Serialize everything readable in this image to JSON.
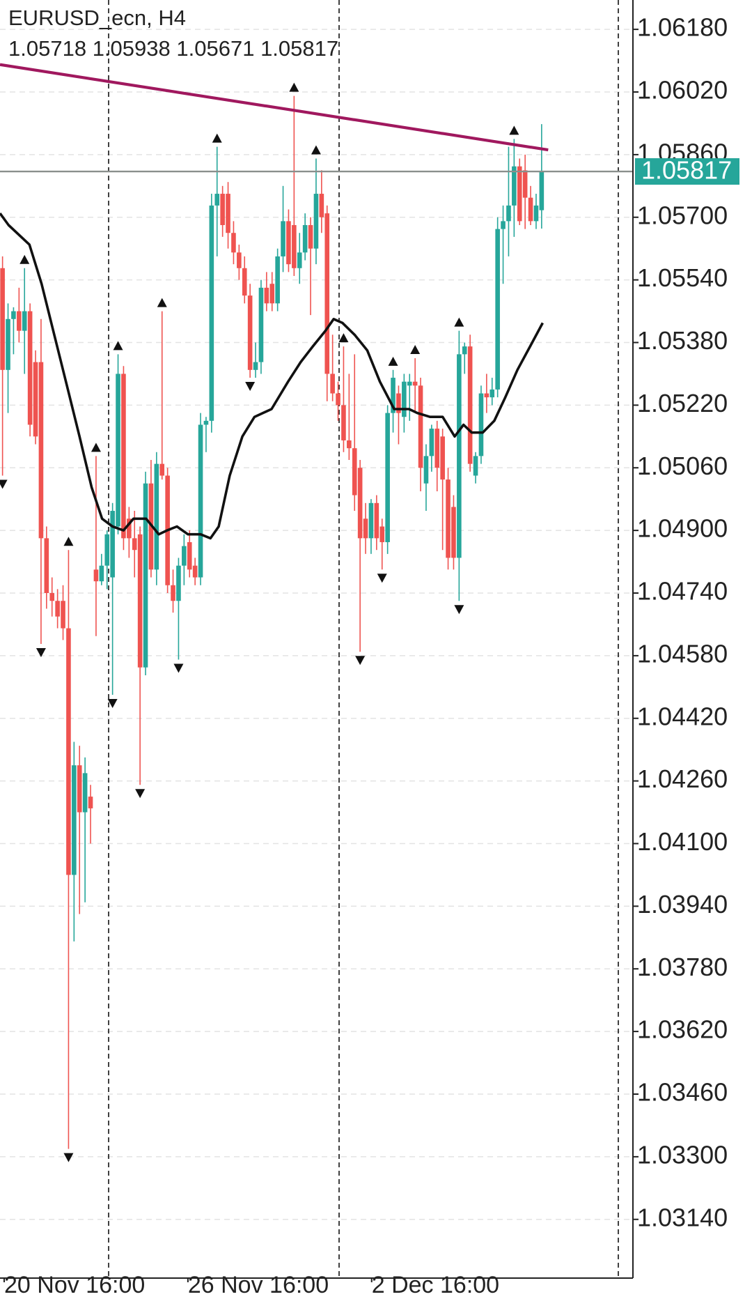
{
  "chart_data": {
    "type": "candlestick",
    "title": "EURUSD_ecn, H4",
    "header_values": [
      1.05718,
      1.05938,
      1.05671,
      1.05817
    ],
    "up_color": "#26a69a",
    "down_color": "#ef5350",
    "ylim": [
      1.0299,
      1.06255
    ],
    "xlim": [
      -0.46,
      114.6
    ],
    "grid": true,
    "yticks": [
      {
        "value": 1.0618,
        "label": "1.06180"
      },
      {
        "value": 1.0602,
        "label": "1.06020"
      },
      {
        "value": 1.0586,
        "label": "1.05860"
      },
      {
        "value": 1.057,
        "label": "1.05700"
      },
      {
        "value": 1.0554,
        "label": "1.05540"
      },
      {
        "value": 1.0538,
        "label": "1.05380"
      },
      {
        "value": 1.0522,
        "label": "1.05220"
      },
      {
        "value": 1.0506,
        "label": "1.05060"
      },
      {
        "value": 1.049,
        "label": "1.04900"
      },
      {
        "value": 1.0474,
        "label": "1.04740"
      },
      {
        "value": 1.0458,
        "label": "1.04580"
      },
      {
        "value": 1.0442,
        "label": "1.04420"
      },
      {
        "value": 1.0426,
        "label": "1.04260"
      },
      {
        "value": 1.041,
        "label": "1.04100"
      },
      {
        "value": 1.0394,
        "label": "1.03940"
      },
      {
        "value": 1.0378,
        "label": "1.03780"
      },
      {
        "value": 1.0362,
        "label": "1.03620"
      },
      {
        "value": 1.0346,
        "label": "1.03460"
      },
      {
        "value": 1.033,
        "label": "1.03300"
      },
      {
        "value": 1.0314,
        "label": "1.03140"
      }
    ],
    "xticks": [
      {
        "value": 0.3,
        "label": "20 Nov 16:00"
      },
      {
        "value": 33.7,
        "label": "26 Nov 16:00"
      },
      {
        "value": 67.1,
        "label": "2 Dec 16:00"
      }
    ],
    "candles": [
      [
        1.0557,
        1.056,
        1.0504,
        1.0531
      ],
      [
        1.0531,
        1.0548,
        1.052,
        1.0544
      ],
      [
        1.0544,
        1.0547,
        1.0535,
        1.0546
      ],
      [
        1.0546,
        1.0552,
        1.0538,
        1.0541
      ],
      [
        1.0541,
        1.0557,
        1.053,
        1.0546
      ],
      [
        1.0546,
        1.0548,
        1.0514,
        1.0517
      ],
      [
        1.0533,
        1.0536,
        1.0512,
        1.0514
      ],
      [
        1.0533,
        1.0544,
        1.0461,
        1.0488
      ],
      [
        1.0488,
        1.0491,
        1.047,
        1.0474
      ],
      [
        1.0474,
        1.0478,
        1.0468,
        1.0472
      ],
      [
        1.0472,
        1.0475,
        1.0465,
        1.0468
      ],
      [
        1.0472,
        1.0476,
        1.0462,
        1.0465
      ],
      [
        1.0465,
        1.0485,
        1.0332,
        1.0402
      ],
      [
        1.0402,
        1.0436,
        1.0385,
        1.043
      ],
      [
        1.043,
        1.0435,
        1.0392,
        1.0418
      ],
      [
        1.0418,
        1.0432,
        1.0395,
        1.0428
      ],
      [
        1.0422,
        1.0425,
        1.041,
        1.0419
      ],
      [
        1.048,
        1.0509,
        1.0463,
        1.0477
      ],
      [
        1.0477,
        1.0484,
        1.0476,
        1.0481
      ],
      [
        1.0481,
        1.049,
        1.0475,
        1.0489
      ],
      [
        1.0478,
        1.0497,
        1.0448,
        1.0495
      ],
      [
        1.0491,
        1.0535,
        1.0489,
        1.053
      ],
      [
        1.053,
        1.0532,
        1.0485,
        1.0488
      ],
      [
        1.0493,
        1.0496,
        1.0483,
        1.0488
      ],
      [
        1.0488,
        1.0495,
        1.0478,
        1.0485
      ],
      [
        1.0489,
        1.0491,
        1.0425,
        1.0455
      ],
      [
        1.0455,
        1.0505,
        1.0453,
        1.0502
      ],
      [
        1.0502,
        1.0508,
        1.0478,
        1.048
      ],
      [
        1.048,
        1.051,
        1.0476,
        1.0507
      ],
      [
        1.0507,
        1.0546,
        1.0503,
        1.0504
      ],
      [
        1.0504,
        1.0506,
        1.0474,
        1.0476
      ],
      [
        1.0476,
        1.048,
        1.0469,
        1.0472
      ],
      [
        1.0472,
        1.0483,
        1.0457,
        1.0481
      ],
      [
        1.0481,
        1.0489,
        1.0476,
        1.0486
      ],
      [
        1.0487,
        1.049,
        1.0478,
        1.048
      ],
      [
        1.0481,
        1.0483,
        1.0476,
        1.0478
      ],
      [
        1.0478,
        1.052,
        1.0476,
        1.0517
      ],
      [
        1.0517,
        1.0519,
        1.051,
        1.0518
      ],
      [
        1.0518,
        1.0576,
        1.0515,
        1.0573
      ],
      [
        1.0573,
        1.0588,
        1.056,
        1.0576
      ],
      [
        1.0576,
        1.0578,
        1.0565,
        1.0568
      ],
      [
        1.0576,
        1.0579,
        1.0562,
        1.0566
      ],
      [
        1.0566,
        1.0569,
        1.0558,
        1.0561
      ],
      [
        1.0561,
        1.0563,
        1.0554,
        1.0557
      ],
      [
        1.0557,
        1.056,
        1.0548,
        1.055
      ],
      [
        1.055,
        1.0553,
        1.0529,
        1.0531
      ],
      [
        1.0531,
        1.0538,
        1.0529,
        1.0533
      ],
      [
        1.0533,
        1.0554,
        1.053,
        1.0552
      ],
      [
        1.0552,
        1.0556,
        1.0546,
        1.0548
      ],
      [
        1.0553,
        1.0556,
        1.0546,
        1.0548
      ],
      [
        1.0548,
        1.0562,
        1.0546,
        1.056
      ],
      [
        1.056,
        1.0578,
        1.0556,
        1.0569
      ],
      [
        1.0569,
        1.0572,
        1.0556,
        1.0558
      ],
      [
        1.0568,
        1.0601,
        1.0555,
        1.0557
      ],
      [
        1.0557,
        1.0566,
        1.0553,
        1.0561
      ],
      [
        1.0561,
        1.0571,
        1.0559,
        1.0568
      ],
      [
        1.0568,
        1.057,
        1.0545,
        1.0562
      ],
      [
        1.0562,
        1.0585,
        1.0558,
        1.0576
      ],
      [
        1.0576,
        1.0582,
        1.0566,
        1.057
      ],
      [
        1.0571,
        1.0573,
        1.0523,
        1.053
      ],
      [
        1.053,
        1.054,
        1.0523,
        1.0525
      ],
      [
        1.0525,
        1.0528,
        1.0518,
        1.0522
      ],
      [
        1.0522,
        1.0537,
        1.051,
        1.0513
      ],
      [
        1.0513,
        1.053,
        1.0508,
        1.0511
      ],
      [
        1.0511,
        1.0535,
        1.0495,
        1.0499
      ],
      [
        1.0506,
        1.0508,
        1.0459,
        1.0488
      ],
      [
        1.0493,
        1.0497,
        1.0484,
        1.0488
      ],
      [
        1.0488,
        1.0498,
        1.0484,
        1.0497
      ],
      [
        1.0497,
        1.0499,
        1.0485,
        1.0488
      ],
      [
        1.0491,
        1.0493,
        1.048,
        1.0487
      ],
      [
        1.0487,
        1.0522,
        1.0484,
        1.052
      ],
      [
        1.052,
        1.0531,
        1.0515,
        1.0529
      ],
      [
        1.0525,
        1.0527,
        1.0512,
        1.052
      ],
      [
        1.0519,
        1.053,
        1.0515,
        1.0528
      ],
      [
        1.0527,
        1.053,
        1.0518,
        1.0528
      ],
      [
        1.0528,
        1.0534,
        1.052,
        1.0527
      ],
      [
        1.0527,
        1.0529,
        1.05,
        1.0506
      ],
      [
        1.0502,
        1.0512,
        1.0495,
        1.0509
      ],
      [
        1.0509,
        1.0517,
        1.0505,
        1.0516
      ],
      [
        1.0516,
        1.0518,
        1.05,
        1.0506
      ],
      [
        1.0514,
        1.0516,
        1.0485,
        1.0503
      ],
      [
        1.0503,
        1.0506,
        1.048,
        1.0483
      ],
      [
        1.0496,
        1.0499,
        1.048,
        1.0483
      ],
      [
        1.0483,
        1.0541,
        1.0472,
        1.0535
      ],
      [
        1.0535,
        1.0538,
        1.053,
        1.0537
      ],
      [
        1.0537,
        1.054,
        1.0505,
        1.0507
      ],
      [
        1.0504,
        1.051,
        1.0502,
        1.0509
      ],
      [
        1.0509,
        1.0527,
        1.0507,
        1.0525
      ],
      [
        1.0525,
        1.053,
        1.052,
        1.0524
      ],
      [
        1.0524,
        1.0529,
        1.0522,
        1.0526
      ],
      [
        1.0526,
        1.057,
        1.0524,
        1.0567
      ],
      [
        1.0567,
        1.0573,
        1.0553,
        1.0569
      ],
      [
        1.0569,
        1.0588,
        1.056,
        1.0573
      ],
      [
        1.0573,
        1.059,
        1.0565,
        1.0583
      ],
      [
        1.0583,
        1.0585,
        1.0568,
        1.0569
      ],
      [
        1.0582,
        1.0586,
        1.0567,
        1.0575
      ],
      [
        1.0575,
        1.0578,
        1.0568,
        1.0569
      ],
      [
        1.0569,
        1.0576,
        1.0567,
        1.0573
      ],
      [
        1.05718,
        1.05938,
        1.05671,
        1.05817
      ]
    ],
    "fractals_up": [
      4,
      12,
      17,
      21,
      29,
      39,
      53,
      57,
      62,
      71,
      75,
      83,
      93
    ],
    "fractals_down": [
      0,
      7,
      12,
      20,
      25,
      32,
      45,
      65,
      69,
      83
    ],
    "moving_average": {
      "color": "#111111",
      "x": [
        -0.46,
        1.1,
        4.9,
        7.1,
        9.4,
        11.7,
        14,
        16.2,
        18.1,
        20,
        22,
        23.8,
        26.1,
        28.4,
        29.9,
        31.7,
        33.7,
        36,
        37.8,
        39.3,
        41.3,
        43.6,
        45.8,
        48.9,
        51.9,
        54.2,
        56.4,
        58.7,
        60.2,
        61.8,
        64,
        66.3,
        68.6,
        71.2,
        73.9,
        75.4,
        77.7,
        80,
        82.2,
        83.8,
        85.3,
        87.3,
        89.4,
        91.4,
        93.6,
        95.9,
        98.2
      ],
      "values": [
        1.0571,
        1.0568,
        1.0563,
        1.0553,
        1.054,
        1.0527,
        1.0514,
        1.0501,
        1.0493,
        1.0491,
        1.049,
        1.0493,
        1.0493,
        1.0489,
        1.049,
        1.0491,
        1.0489,
        1.0489,
        1.0488,
        1.0491,
        1.0504,
        1.0514,
        1.0519,
        1.0521,
        1.0528,
        1.0533,
        1.0537,
        1.0541,
        1.0544,
        1.0543,
        1.054,
        1.0536,
        1.0528,
        1.0521,
        1.0521,
        1.052,
        1.0519,
        1.0519,
        1.0514,
        1.0517,
        1.0515,
        1.0515,
        1.0518,
        1.0524,
        1.0531,
        1.0537,
        1.0543
      ]
    },
    "trendline": {
      "color": "#a0185e",
      "x": [
        -0.46,
        99.2
      ],
      "values": [
        1.0609,
        1.05872
      ]
    },
    "last_price": 1.05817,
    "last_price_color": "#26a69a"
  }
}
